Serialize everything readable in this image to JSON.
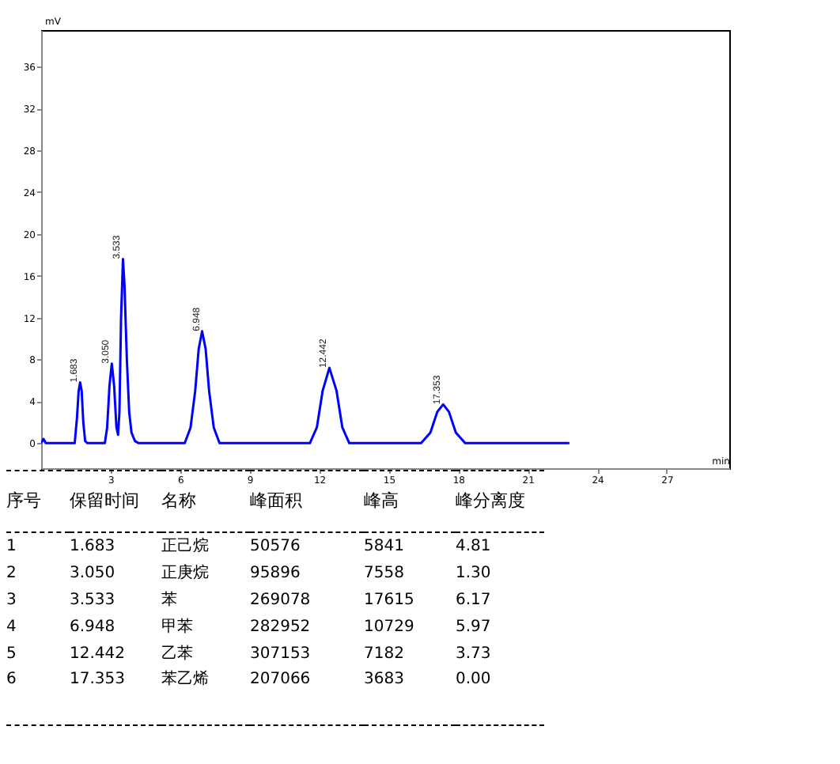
{
  "chart_data": {
    "type": "line",
    "xlabel": "min",
    "ylabel": "mV",
    "xlim": [
      0,
      29.7
    ],
    "ylim": [
      -2.4,
      39.5
    ],
    "xticks": [
      3,
      6,
      9,
      12,
      15,
      18,
      21,
      24,
      27
    ],
    "yticks": [
      0,
      4,
      8,
      12,
      16,
      20,
      24,
      28,
      32,
      36
    ],
    "grid": false,
    "legend": false,
    "marker": "none",
    "line_style": "solid",
    "series": [
      {
        "color": "#0000ff",
        "x": [
          0,
          0.1,
          0.2,
          1.45,
          1.55,
          1.62,
          1.683,
          1.75,
          1.82,
          1.9,
          2.0,
          2.75,
          2.85,
          2.95,
          3.05,
          3.15,
          3.25,
          3.32,
          3.38,
          3.45,
          3.533,
          3.6,
          3.7,
          3.8,
          3.9,
          4.05,
          4.2,
          6.2,
          6.45,
          6.65,
          6.8,
          6.948,
          7.1,
          7.25,
          7.45,
          7.7,
          11.6,
          11.9,
          12.15,
          12.442,
          12.75,
          13.0,
          13.3,
          16.4,
          16.8,
          17.1,
          17.353,
          17.6,
          17.9,
          18.3,
          22.8
        ],
        "values": [
          0,
          0.4,
          0,
          0,
          2.5,
          5.0,
          5.8,
          5.0,
          2.0,
          0.2,
          0,
          0,
          1.5,
          5.5,
          7.6,
          5.5,
          1.5,
          0.8,
          3,
          12,
          17.6,
          15,
          8,
          3,
          1,
          0.2,
          0,
          0,
          1.5,
          5,
          9,
          10.7,
          9,
          5,
          1.5,
          0,
          0,
          1.5,
          5,
          7.2,
          5,
          1.5,
          0,
          0,
          1.0,
          3,
          3.7,
          3,
          1,
          0,
          0
        ]
      }
    ],
    "annotations": [
      {
        "text": "1.683",
        "x": 1.683,
        "y": 5.8
      },
      {
        "text": "3.050",
        "x": 3.05,
        "y": 7.6
      },
      {
        "text": "3.533",
        "x": 3.533,
        "y": 17.6
      },
      {
        "text": "6.948",
        "x": 6.948,
        "y": 10.7
      },
      {
        "text": "12.442",
        "x": 12.442,
        "y": 7.2
      },
      {
        "text": "17.353",
        "x": 17.353,
        "y": 3.7
      },
      "序号\t保留时间\t名称\t峰面积\t峰高\t峰分离度",
      "1\t1.683\t正己烷\t50576\t5841\t4.81",
      "2\t3.050\t正庚烷\t95896\t7558\t1.30",
      "3\t3.533\t苯\t269078\t17615\t6.17",
      "4\t6.948\t甲苯\t282952\t10729\t5.97",
      "5\t12.442\t乙苯\t307153\t7182\t3.73",
      "6\t17.353\t苯乙烯\t207066\t3683\t0.00"
    ]
  }
}
